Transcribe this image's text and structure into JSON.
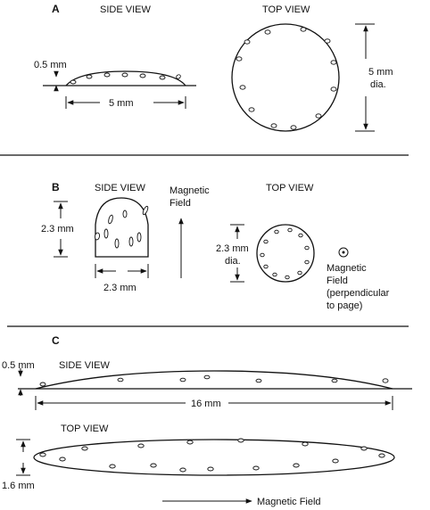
{
  "panels": {
    "a": {
      "letter": "A",
      "side_view_title": "SIDE VIEW",
      "top_view_title": "TOP VIEW",
      "height_label": "0.5 mm",
      "width_label": "5 mm",
      "diameter_label_line1": "5 mm",
      "diameter_label_line2": "dia."
    },
    "b": {
      "letter": "B",
      "side_view_title": "SIDE VIEW",
      "top_view_title": "TOP VIEW",
      "field_label_line1": "Magnetic",
      "field_label_line2": "Field",
      "height_label": "2.3 mm",
      "width_label": "2.3 mm",
      "diameter_label_line1": "2.3 mm",
      "diameter_label_line2": "dia.",
      "perp_label_line1": "Magnetic",
      "perp_label_line2": "Field",
      "perp_label_line3": "(perpendicular",
      "perp_label_line4": "to page)"
    },
    "c": {
      "letter": "C",
      "height_label": "0.5 mm",
      "side_view_title": "SIDE VIEW",
      "length_label": "16 mm",
      "top_view_title": "TOP VIEW",
      "width_label": "1.6 mm",
      "field_label": "Magnetic Field"
    }
  }
}
